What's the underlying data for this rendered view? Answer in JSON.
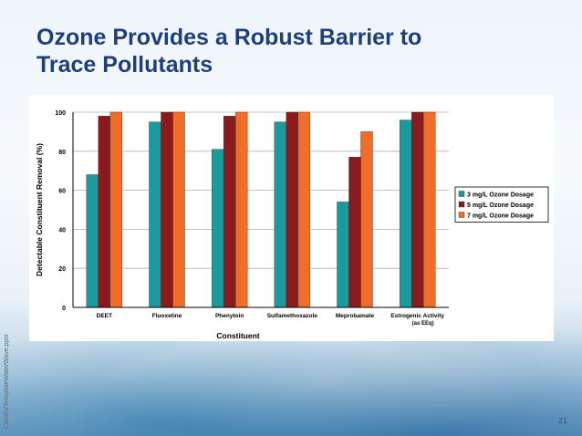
{
  "slide": {
    "title_line1": "Ozone Provides a Robust Barrier to",
    "title_line2": "Trace Pollutants",
    "side_credit": "Carollo/TemplateWaterWave.pptx",
    "page_number": "21"
  },
  "chart_data": {
    "type": "bar",
    "title": "",
    "xlabel": "Constituent",
    "ylabel": "Detectable Constituent Removal (%)",
    "ylim": [
      0,
      100
    ],
    "yticks": [
      "0",
      "20",
      "40",
      "60",
      "80",
      "100"
    ],
    "grid": true,
    "legend_position": "right",
    "categories": [
      {
        "line1": "DEET",
        "line2": ""
      },
      {
        "line1": "Fluoxetine",
        "line2": ""
      },
      {
        "line1": "Phenytoin",
        "line2": ""
      },
      {
        "line1": "Sulfamethoxazole",
        "line2": ""
      },
      {
        "line1": "Meprobamate",
        "line2": ""
      },
      {
        "line1": "Estrogenic Activity",
        "line2": "(as EEq)"
      }
    ],
    "series": [
      {
        "name": "3 mg/L Ozone Dosage",
        "color": "#1a9a9c",
        "values": [
          68,
          95,
          81,
          95,
          54,
          96
        ]
      },
      {
        "name": "5 mg/L Ozone Dosage",
        "color": "#8b1a1e",
        "values": [
          98,
          100,
          98,
          100,
          77,
          100
        ]
      },
      {
        "name": "7 mg/L Ozone Dosage",
        "color": "#f06e28",
        "values": [
          100,
          100,
          100,
          100,
          90,
          100
        ]
      }
    ]
  }
}
